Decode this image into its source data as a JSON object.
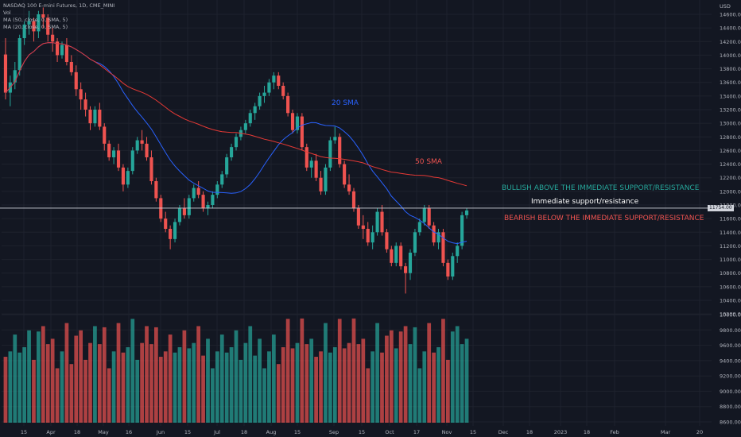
{
  "legend": {
    "symbol": "NASDAQ 100 E-mini Futures, 1D, CME_MINI",
    "vol": "Vol",
    "ma50": "MA (50, close, 0, SMA, 5)",
    "ma20": "MA (20, close, 0, SMA, 5)"
  },
  "annotations": {
    "sma20": "20 SMA",
    "sma50": "50 SMA",
    "bullish": "BULLISH ABOVE THE IMMEDIATE SUPPORT/RESISTANCE",
    "support": "Immediate support/resistance",
    "bearish": "BEARISH BELOW THE IMMEDIATE SUPPORT/RESISTANCE"
  },
  "axis": {
    "currency": "USD",
    "price_ticks": [
      "14600.00",
      "14400.00",
      "14200.00",
      "14000.00",
      "13800.00",
      "13600.00",
      "13400.00",
      "13200.00",
      "13000.00",
      "12800.00",
      "12600.00",
      "12400.00",
      "12200.00",
      "12000.00",
      "11800.00",
      "11600.00",
      "11400.00",
      "11200.00",
      "11000.00",
      "10800.00",
      "10600.00",
      "10400.00",
      "10200.00",
      "10000.00",
      "9800.00",
      "9600.00",
      "9400.00",
      "9200.00",
      "9000.00",
      "8800.00",
      "8600.00"
    ],
    "time_ticks": [
      "15",
      "Apr",
      "18",
      "May",
      "16",
      "Jun",
      "15",
      "Jul",
      "18",
      "Aug",
      "15",
      "Sep",
      "15",
      "Oct",
      "17",
      "Nov",
      "15",
      "Dec",
      "18",
      "2023",
      "18",
      "Feb",
      "Mar",
      "20"
    ]
  },
  "price_tag": "11754.00",
  "colors": {
    "background": "#131722",
    "up": "#26a69a",
    "down": "#ef5350",
    "ma20": "#2962ff",
    "ma50": "#e53935",
    "grid": "#1e222d",
    "text": "#b2b5be",
    "bullish_text": "#26a69a",
    "bearish_text": "#ef5350",
    "line": "#d1d4dc"
  },
  "chart_data": {
    "type": "candlestick",
    "title": "NASDAQ 100 E-mini Futures, 1D, CME_MINI",
    "ylim": [
      10200,
      14700
    ],
    "support_level": 11754,
    "candles": [
      [
        14010,
        14250,
        13350,
        13450
      ],
      [
        13450,
        13700,
        13250,
        13600
      ],
      [
        13600,
        13900,
        13500,
        13780
      ],
      [
        13780,
        14300,
        13700,
        14250
      ],
      [
        14250,
        14500,
        14150,
        14450
      ],
      [
        14450,
        14650,
        14300,
        14500
      ],
      [
        14500,
        14550,
        14200,
        14350
      ],
      [
        14350,
        14650,
        14250,
        14600
      ],
      [
        14600,
        14700,
        14400,
        14550
      ],
      [
        14550,
        14600,
        14200,
        14300
      ],
      [
        14300,
        14400,
        14050,
        14200
      ],
      [
        14200,
        14250,
        13900,
        14000
      ],
      [
        14000,
        14200,
        13950,
        14150
      ],
      [
        14150,
        14250,
        13850,
        13900
      ],
      [
        13900,
        14000,
        13700,
        13750
      ],
      [
        13750,
        13850,
        13400,
        13500
      ],
      [
        13500,
        13600,
        13200,
        13350
      ],
      [
        13350,
        13450,
        13100,
        13200
      ],
      [
        13200,
        13250,
        12900,
        13000
      ],
      [
        13000,
        13250,
        12950,
        13200
      ],
      [
        13200,
        13300,
        12900,
        12950
      ],
      [
        12950,
        13000,
        12600,
        12700
      ],
      [
        12700,
        12750,
        12450,
        12500
      ],
      [
        12500,
        12650,
        12400,
        12600
      ],
      [
        12600,
        12700,
        12300,
        12350
      ],
      [
        12350,
        12400,
        12000,
        12100
      ],
      [
        12100,
        12350,
        12050,
        12300
      ],
      [
        12300,
        12650,
        12250,
        12600
      ],
      [
        12600,
        12800,
        12550,
        12750
      ],
      [
        12750,
        12900,
        12600,
        12700
      ],
      [
        12700,
        12800,
        12450,
        12500
      ],
      [
        12500,
        12600,
        12100,
        12150
      ],
      [
        12150,
        12200,
        11850,
        11900
      ],
      [
        11900,
        11950,
        11550,
        11600
      ],
      [
        11600,
        11700,
        11400,
        11450
      ],
      [
        11450,
        11500,
        11150,
        11300
      ],
      [
        11300,
        11600,
        11250,
        11550
      ],
      [
        11550,
        11800,
        11500,
        11750
      ],
      [
        11750,
        11900,
        11600,
        11650
      ],
      [
        11650,
        11950,
        11600,
        11900
      ],
      [
        11900,
        12100,
        11850,
        12050
      ],
      [
        12050,
        12150,
        11900,
        11950
      ],
      [
        11950,
        12000,
        11700,
        11750
      ],
      [
        11750,
        11850,
        11650,
        11800
      ],
      [
        11800,
        12000,
        11750,
        11950
      ],
      [
        11950,
        12150,
        11900,
        12100
      ],
      [
        12100,
        12300,
        12050,
        12250
      ],
      [
        12250,
        12550,
        12200,
        12500
      ],
      [
        12500,
        12700,
        12450,
        12650
      ],
      [
        12650,
        12850,
        12600,
        12800
      ],
      [
        12800,
        12950,
        12750,
        12900
      ],
      [
        12900,
        13050,
        12850,
        13000
      ],
      [
        13000,
        13200,
        12950,
        13150
      ],
      [
        13150,
        13300,
        13050,
        13250
      ],
      [
        13250,
        13450,
        13200,
        13400
      ],
      [
        13400,
        13550,
        13300,
        13450
      ],
      [
        13450,
        13650,
        13400,
        13600
      ],
      [
        13600,
        13750,
        13500,
        13700
      ],
      [
        13700,
        13750,
        13500,
        13550
      ],
      [
        13550,
        13600,
        13350,
        13400
      ],
      [
        13400,
        13450,
        13100,
        13150
      ],
      [
        13150,
        13200,
        12850,
        12900
      ],
      [
        12900,
        13150,
        12850,
        13100
      ],
      [
        13100,
        13150,
        12600,
        12650
      ],
      [
        12650,
        12700,
        12300,
        12350
      ],
      [
        12350,
        12500,
        12200,
        12450
      ],
      [
        12450,
        12550,
        12150,
        12200
      ],
      [
        12200,
        12300,
        11950,
        12000
      ],
      [
        12000,
        12400,
        11950,
        12350
      ],
      [
        12350,
        12800,
        12300,
        12750
      ],
      [
        12750,
        12950,
        12700,
        12800
      ],
      [
        12800,
        12850,
        12350,
        12400
      ],
      [
        12400,
        12450,
        12050,
        12100
      ],
      [
        12100,
        12250,
        11950,
        12000
      ],
      [
        12000,
        12050,
        11700,
        11750
      ],
      [
        11750,
        11800,
        11450,
        11500
      ],
      [
        11500,
        11650,
        11300,
        11450
      ],
      [
        11450,
        11550,
        11200,
        11250
      ],
      [
        11250,
        11500,
        11150,
        11400
      ],
      [
        11400,
        11750,
        11350,
        11700
      ],
      [
        11700,
        11800,
        11350,
        11400
      ],
      [
        11400,
        11450,
        11100,
        11150
      ],
      [
        11150,
        11200,
        10900,
        10950
      ],
      [
        10950,
        11250,
        10900,
        11200
      ],
      [
        11200,
        11250,
        10850,
        10900
      ],
      [
        10900,
        10950,
        10500,
        10800
      ],
      [
        10800,
        11150,
        10700,
        11100
      ],
      [
        11100,
        11450,
        11050,
        11400
      ],
      [
        11400,
        11600,
        11350,
        11550
      ],
      [
        11550,
        11800,
        11500,
        11750
      ],
      [
        11750,
        11800,
        11450,
        11500
      ],
      [
        11500,
        11550,
        11200,
        11250
      ],
      [
        11250,
        11450,
        11150,
        11400
      ],
      [
        11400,
        11450,
        10900,
        10950
      ],
      [
        10950,
        11000,
        10700,
        10750
      ],
      [
        10750,
        11100,
        10700,
        11050
      ],
      [
        11050,
        11250,
        10950,
        11200
      ],
      [
        11200,
        11700,
        11150,
        11650
      ],
      [
        11650,
        11750,
        11600,
        11720
      ]
    ]
  }
}
